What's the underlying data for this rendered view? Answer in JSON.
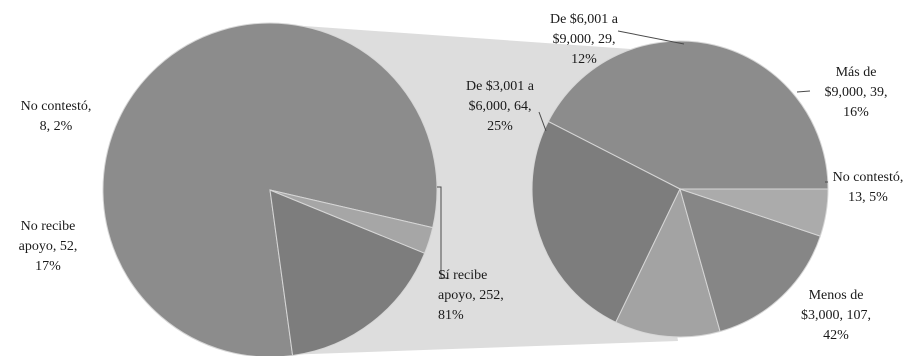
{
  "chart_data": [
    {
      "type": "pie",
      "slices": [
        {
          "label_lines": [
            "Sí recibe",
            "apoyo, 252,",
            "81%"
          ],
          "name": "Sí recibe apoyo",
          "value": 252,
          "percent": 81,
          "color": "#8c8c8c"
        },
        {
          "label_lines": [
            "No recibe",
            "apoyo, 52,",
            "17%"
          ],
          "name": "No recibe apoyo",
          "value": 52,
          "percent": 17,
          "color": "#7d7d7d"
        },
        {
          "label_lines": [
            "No contestó,",
            "8, 2%"
          ],
          "name": "No contestó",
          "value": 8,
          "percent": 2,
          "color": "#a6a6a6"
        }
      ]
    },
    {
      "type": "pie",
      "slices": [
        {
          "label_lines": [
            "Menos de",
            "$3,000, 107,",
            "42%"
          ],
          "name": "Menos de $3,000",
          "value": 107,
          "percent": 42,
          "color": "#8c8c8c"
        },
        {
          "label_lines": [
            "De $3,001 a",
            "$6,000, 64,",
            "25%"
          ],
          "name": "De $3,001 a $6,000",
          "value": 64,
          "percent": 25,
          "color": "#7d7d7d"
        },
        {
          "label_lines": [
            "De $6,001 a",
            "$9,000, 29,",
            "12%"
          ],
          "name": "De $6,001 a $9,000",
          "value": 29,
          "percent": 12,
          "color": "#a3a3a3"
        },
        {
          "label_lines": [
            "Más de",
            "$9,000, 39,",
            "16%"
          ],
          "name": "Más de $9,000",
          "value": 39,
          "percent": 16,
          "color": "#868686"
        },
        {
          "label_lines": [
            "No contestó,",
            "13, 5%"
          ],
          "name": "No contestó",
          "value": 13,
          "percent": 5,
          "color": "#ababab"
        }
      ]
    }
  ],
  "connector_color": "#dddddd",
  "edge_color": "#d6d6d6"
}
